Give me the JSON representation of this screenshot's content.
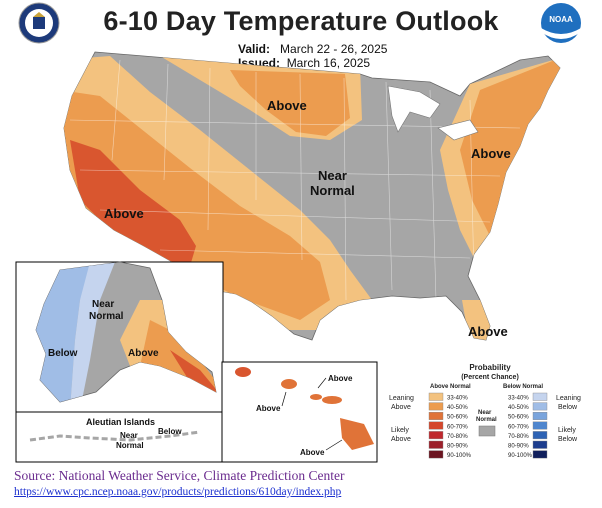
{
  "title": "6-10 Day Temperature Outlook",
  "valid": {
    "label": "Valid:",
    "value": "March 22 - 26, 2025"
  },
  "issued": {
    "label": "Issued:",
    "value": "March 16, 2025"
  },
  "logos": {
    "left": "us-department-of-commerce-seal",
    "right": "noaa-logo"
  },
  "regions": {
    "above_north": "Above",
    "near_normal_center": [
      "Near",
      "Normal"
    ],
    "above_west": "Above",
    "above_east": "Above",
    "above_south": "Above",
    "alaska_near_normal": [
      "Near",
      "Normal"
    ],
    "alaska_below": "Below",
    "alaska_above": "Above",
    "aleutian_title": "Aleutian Islands",
    "aleutian_near_normal": [
      "Near",
      "Normal"
    ],
    "aleutian_below": "Below",
    "hawaii_above_1": "Above",
    "hawaii_above_2": "Above",
    "hawaii_above_3": "Above"
  },
  "legend": {
    "title": [
      "Probability",
      "(Percent Chance)"
    ],
    "above_header": "Above Normal",
    "below_header": "Below Normal",
    "leaning_above": [
      "Leaning",
      "Above"
    ],
    "likely_above": [
      "Likely",
      "Above"
    ],
    "near_normal": [
      "Near",
      "Normal"
    ],
    "leaning_below": [
      "Leaning",
      "Below"
    ],
    "likely_below": [
      "Likely",
      "Below"
    ],
    "bins": [
      "33-40%",
      "40-50%",
      "50-60%",
      "60-70%",
      "70-80%",
      "80-90%",
      "90-100%"
    ],
    "above_colors": [
      "#f3c27f",
      "#ec9c4f",
      "#e07338",
      "#d4472c",
      "#c0282d",
      "#9c1f2a",
      "#6b1420"
    ],
    "below_colors": [
      "#c5d4ee",
      "#a0bde6",
      "#7aa4dc",
      "#4f86ce",
      "#2d62b4",
      "#1d3d8e",
      "#101f5c"
    ],
    "near_color": "#a6a6a6"
  },
  "source": "Source: National Weather Service, Climate Prediction Center",
  "url": "https://www.cpc.ncep.noaa.gov/products/predictions/610day/index.php"
}
